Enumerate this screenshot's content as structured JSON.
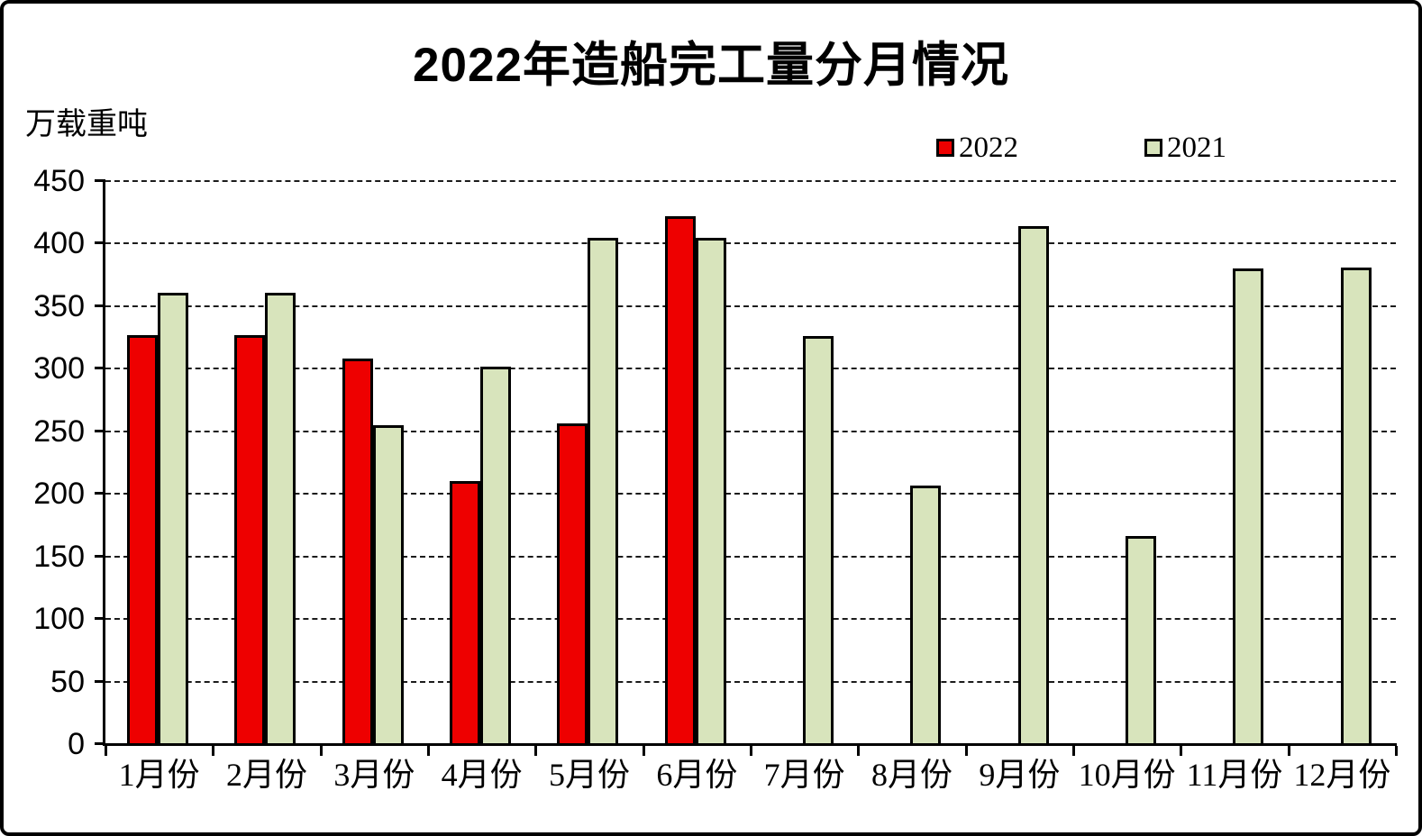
{
  "chart_data": {
    "type": "bar",
    "title": "2022年造船完工量分月情况",
    "unit_label": "万载重吨",
    "categories": [
      "1月份",
      "2月份",
      "3月份",
      "4月份",
      "5月份",
      "6月份",
      "7月份",
      "8月份",
      "9月份",
      "10月份",
      "11月份",
      "12月份"
    ],
    "series": [
      {
        "name": "2022",
        "color": "#ee0000",
        "values": [
          327,
          327,
          308,
          210,
          256,
          422,
          null,
          null,
          null,
          null,
          null,
          null
        ]
      },
      {
        "name": "2021",
        "color": "#d8e4bc",
        "values": [
          361,
          361,
          255,
          302,
          405,
          405,
          326,
          207,
          414,
          166,
          380,
          381
        ]
      }
    ],
    "ylim": [
      0,
      450
    ],
    "ytick_step": 50,
    "yticks": [
      "450",
      "400",
      "350",
      "300",
      "250",
      "200",
      "150",
      "100",
      "50",
      "0"
    ],
    "grid": "horizontal-dashed",
    "legend_position": "top-right",
    "axis_color": "#000000",
    "background_color": "#ffffff"
  }
}
